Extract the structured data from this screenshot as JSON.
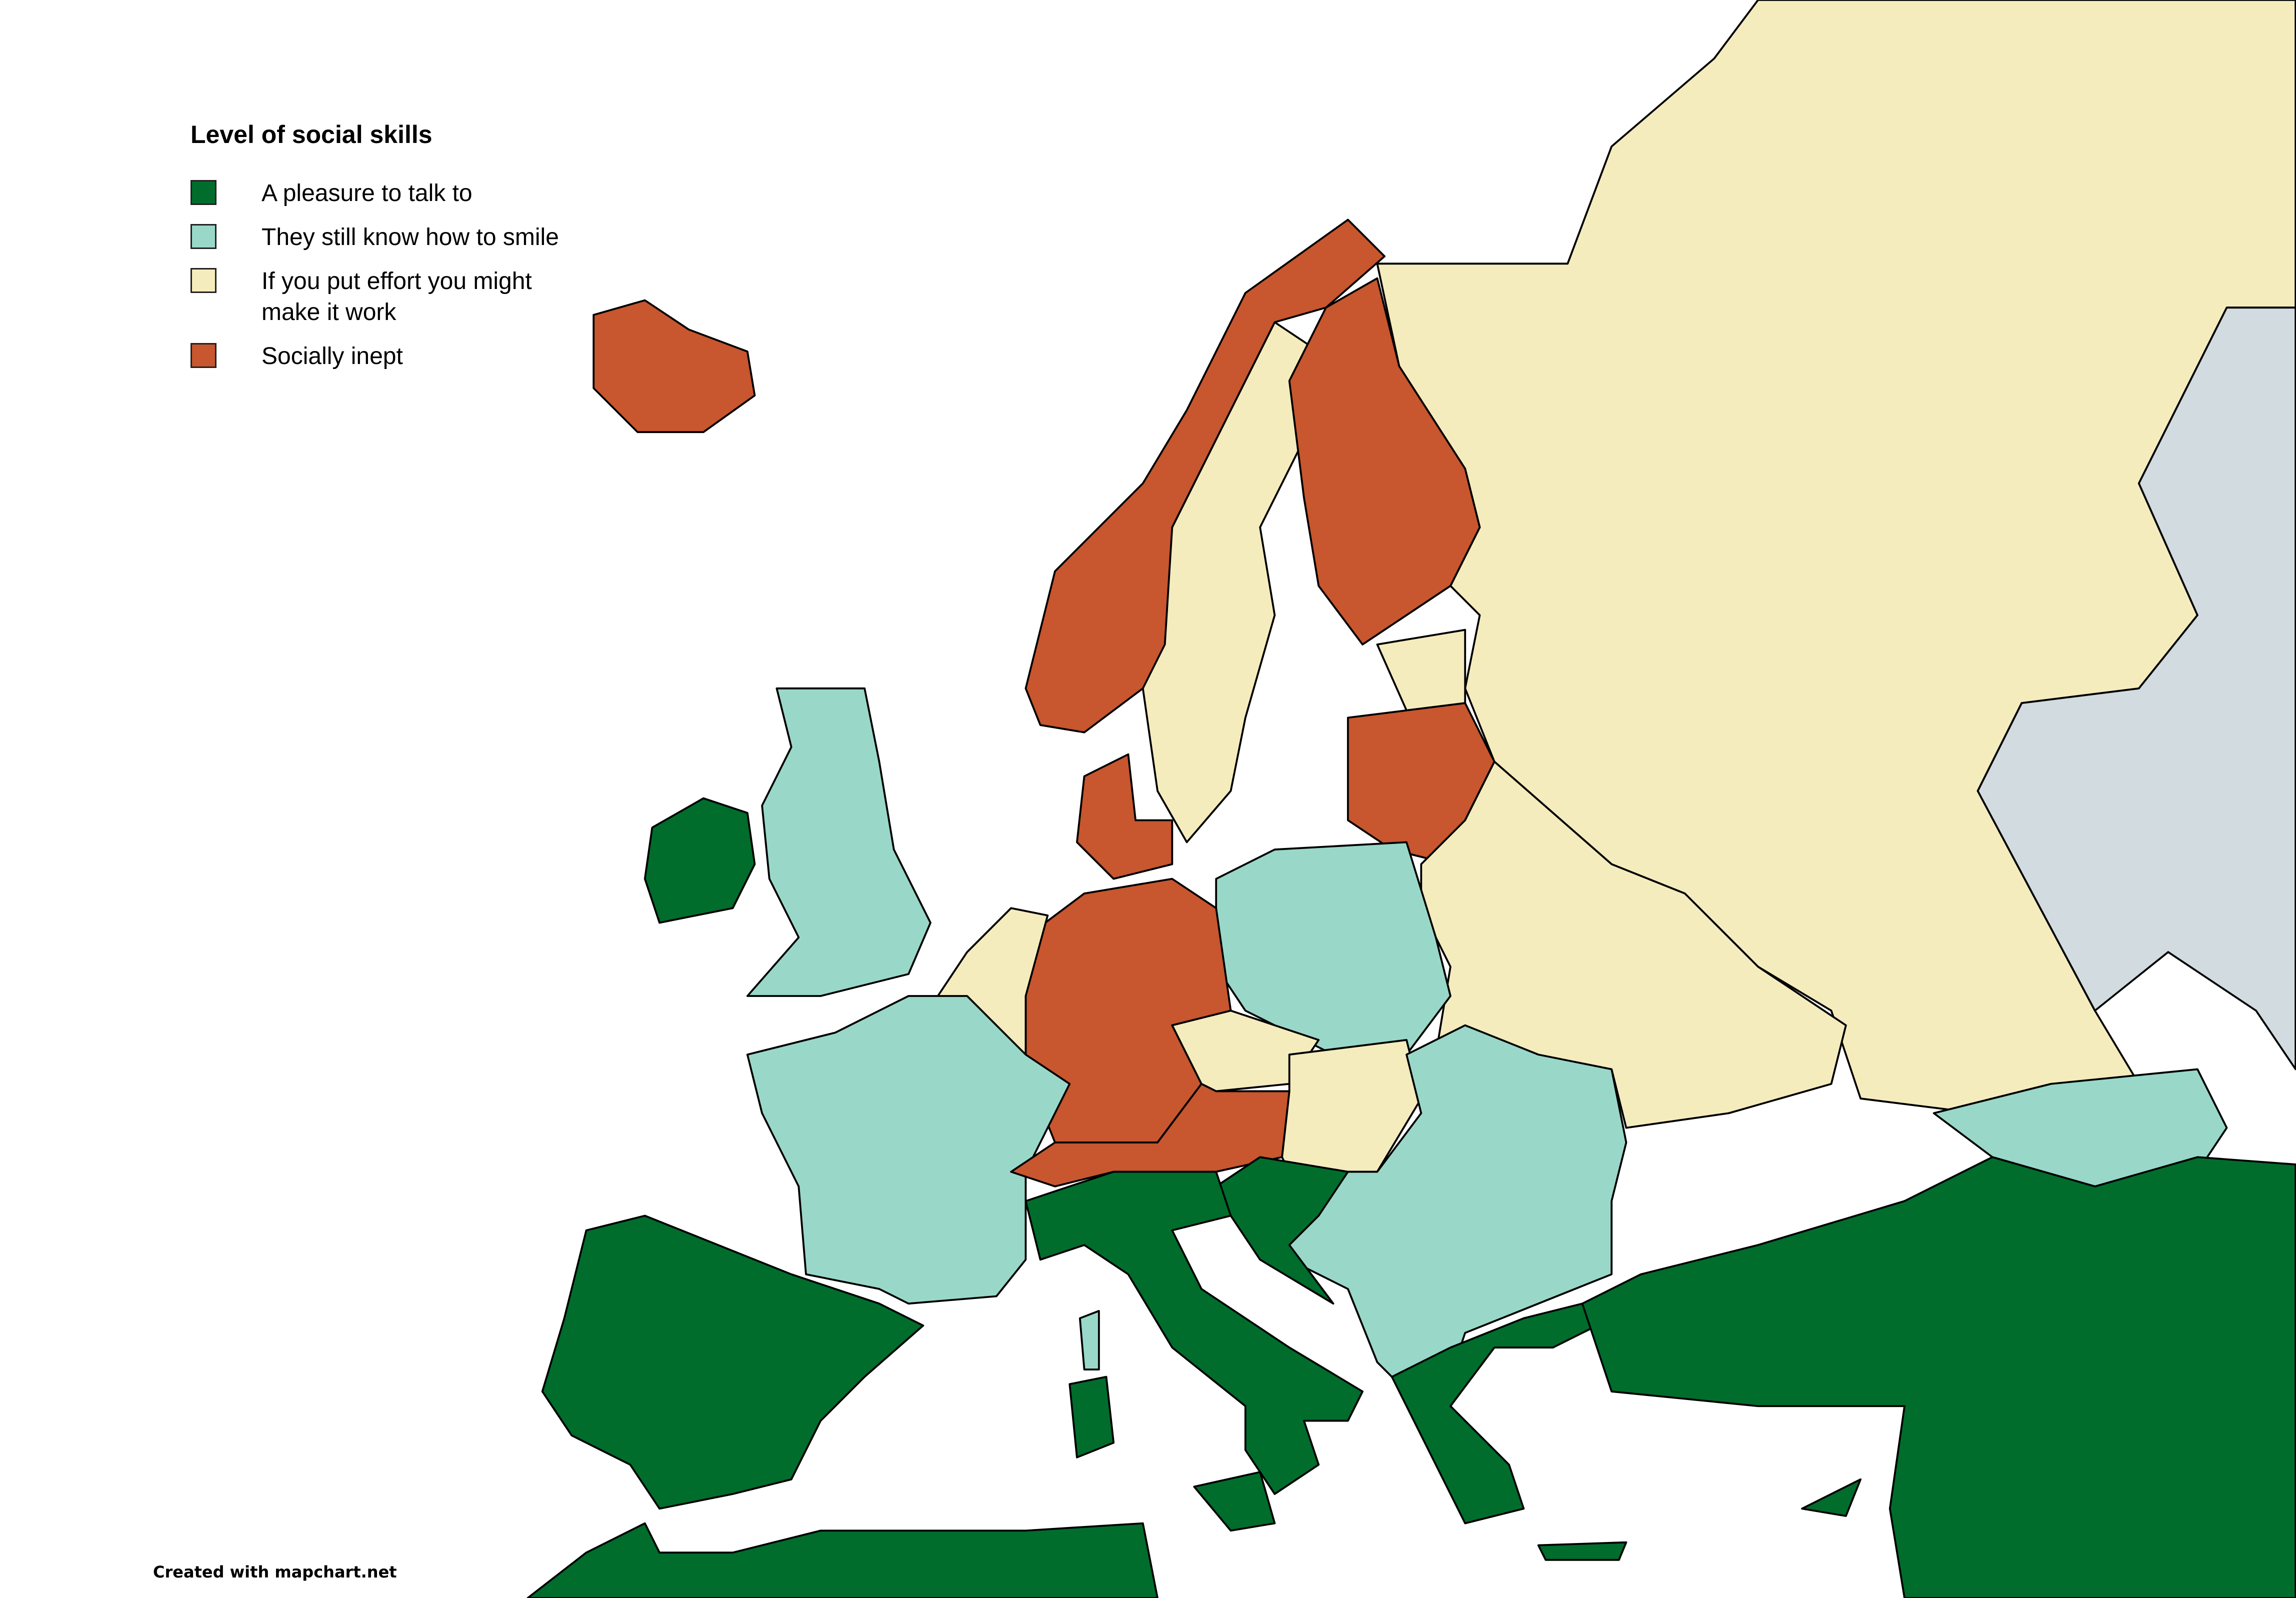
{
  "legend": {
    "title": "Level of social skills",
    "items": [
      {
        "label": "A pleasure to talk to",
        "color": "#006d2c"
      },
      {
        "label": "They still know how to smile",
        "color": "#99d8c9"
      },
      {
        "label": "If you put effort you might make it work",
        "color": "#f5ecbe"
      },
      {
        "label": "Socially inept",
        "color": "#c8562e"
      }
    ]
  },
  "no_data_color": "#d1dbe0",
  "regions": {
    "iceland": 3,
    "ireland": 0,
    "united-kingdom": 1,
    "norway": 3,
    "sweden": 2,
    "finland": 3,
    "russia": 2,
    "kazakhstan": "none",
    "estonia": 2,
    "latvia-lithuania": 3,
    "belarus-ukraine": 2,
    "poland": 1,
    "germany": 3,
    "denmark": 3,
    "benelux": 2,
    "france": 1,
    "iberia": 0,
    "switzerland-austria": 3,
    "czechia": 2,
    "hungary-slovakia": 2,
    "italy": 0,
    "sicily": 0,
    "sardinia": 0,
    "corsica": 1,
    "balkans": 1,
    "croatia": 0,
    "greece": 0,
    "turkey-middle-east": 0,
    "caucasus": 1,
    "cyprus": 0,
    "north-africa": 0,
    "crete": 0
  },
  "footer": "Created with mapchart.net"
}
